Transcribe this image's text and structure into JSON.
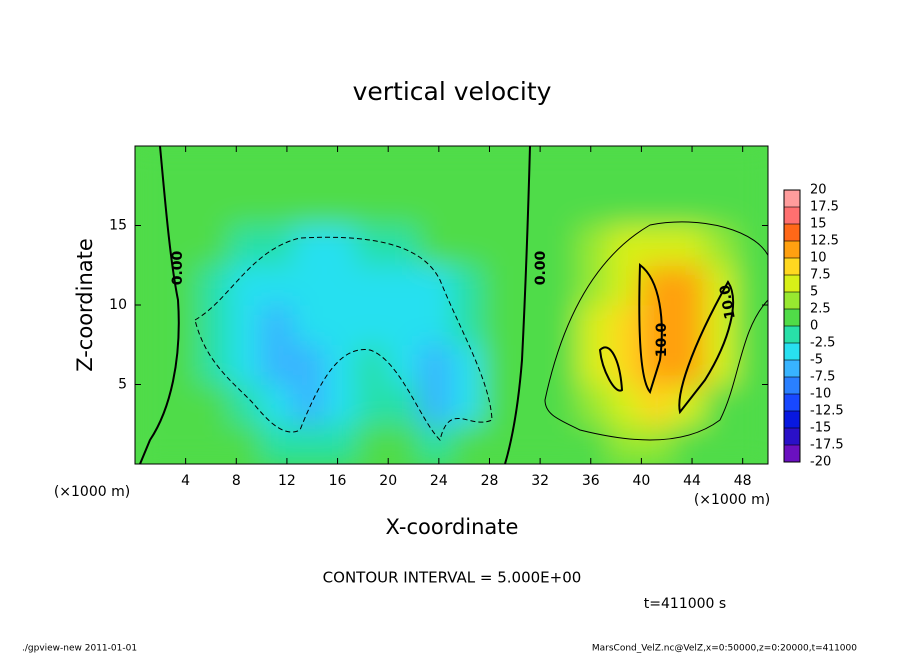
{
  "chart_data": {
    "type": "contour",
    "title": "vertical velocity",
    "x_label": "X-coordinate",
    "y_label": "Z-coordinate",
    "x_unit": "(×1000 m)",
    "y_unit": "(×1000 m)",
    "annotation": "CONTOUR INTERVAL = 5.000E+00",
    "time_label": "t=411000 s",
    "footer_left": "./gpview-new  2011-01-01",
    "footer_right": "MarsCond_VelZ.nc@VelZ,x=0:50000,z=0:20000,t=411000",
    "contour_labels": [
      "0.00",
      "0.00",
      "10.0",
      "10.0"
    ],
    "xlim": [
      0,
      50
    ],
    "ylim": [
      0,
      20
    ],
    "xticks": [
      4,
      8,
      12,
      16,
      20,
      24,
      28,
      32,
      36,
      40,
      44,
      48
    ],
    "yticks": [
      5,
      10,
      15
    ],
    "x": [
      1.25,
      3.75,
      6.25,
      8.75,
      11.25,
      13.75,
      16.25,
      18.75,
      21.25,
      23.75,
      26.25,
      28.75,
      31.25,
      33.75,
      36.25,
      38.75,
      41.25,
      43.75,
      46.25,
      48.75
    ],
    "y": [
      1.25,
      3.75,
      6.25,
      8.75,
      11.25,
      13.75,
      16.25,
      18.75
    ],
    "z": [
      [
        0,
        1,
        1,
        0,
        -2,
        -2,
        -1,
        1,
        0,
        -2,
        0,
        0,
        0,
        1,
        2,
        3,
        3,
        2,
        1,
        0
      ],
      [
        0,
        0,
        0,
        -2,
        -5,
        -6,
        -3,
        -2,
        -2,
        -6,
        -3,
        0,
        0,
        1,
        4,
        6,
        8,
        5,
        2,
        0
      ],
      [
        0,
        0,
        -1,
        -3,
        -6,
        -6,
        -4,
        -2,
        -3,
        -7,
        -3,
        0,
        0,
        2,
        5,
        9,
        11,
        10,
        5,
        1
      ],
      [
        0,
        0,
        -2,
        -4,
        -6,
        -5,
        -4,
        -4,
        -4,
        -5,
        -2,
        0,
        0,
        2,
        5,
        8,
        12,
        10,
        7,
        2
      ],
      [
        0,
        0,
        -1,
        -3,
        -4,
        -4,
        -4,
        -4,
        -3,
        -3,
        -1,
        0,
        0,
        2,
        4,
        6,
        10,
        10,
        6,
        1
      ],
      [
        0,
        0,
        0,
        -1,
        -2,
        -3,
        -3,
        -2,
        -1,
        0,
        0,
        0,
        0,
        1,
        3,
        5,
        5,
        5,
        3,
        0
      ],
      [
        0,
        0,
        0,
        0,
        0,
        0,
        0,
        0,
        0,
        0,
        0,
        0,
        0,
        0,
        1,
        2,
        2,
        1,
        0,
        0
      ],
      [
        0,
        0,
        0,
        0,
        0,
        0,
        0,
        0,
        0,
        0,
        0,
        0,
        0,
        0,
        0,
        0,
        0,
        0,
        0,
        0
      ]
    ],
    "levels": [
      -20,
      -17.5,
      -15,
      -12.5,
      -10,
      -7.5,
      -5,
      -2.5,
      0,
      2.5,
      5,
      7.5,
      10,
      12.5,
      15,
      17.5,
      20
    ],
    "colors": [
      "#6a10c0",
      "#2a10c8",
      "#0818e0",
      "#1848ff",
      "#2a80ff",
      "#38b4ff",
      "#28e0f0",
      "#28e0a8",
      "#50dc48",
      "#98e830",
      "#d8f018",
      "#ffd820",
      "#ffa010",
      "#ff6818",
      "#ff7070",
      "#ff9c9c"
    ]
  }
}
